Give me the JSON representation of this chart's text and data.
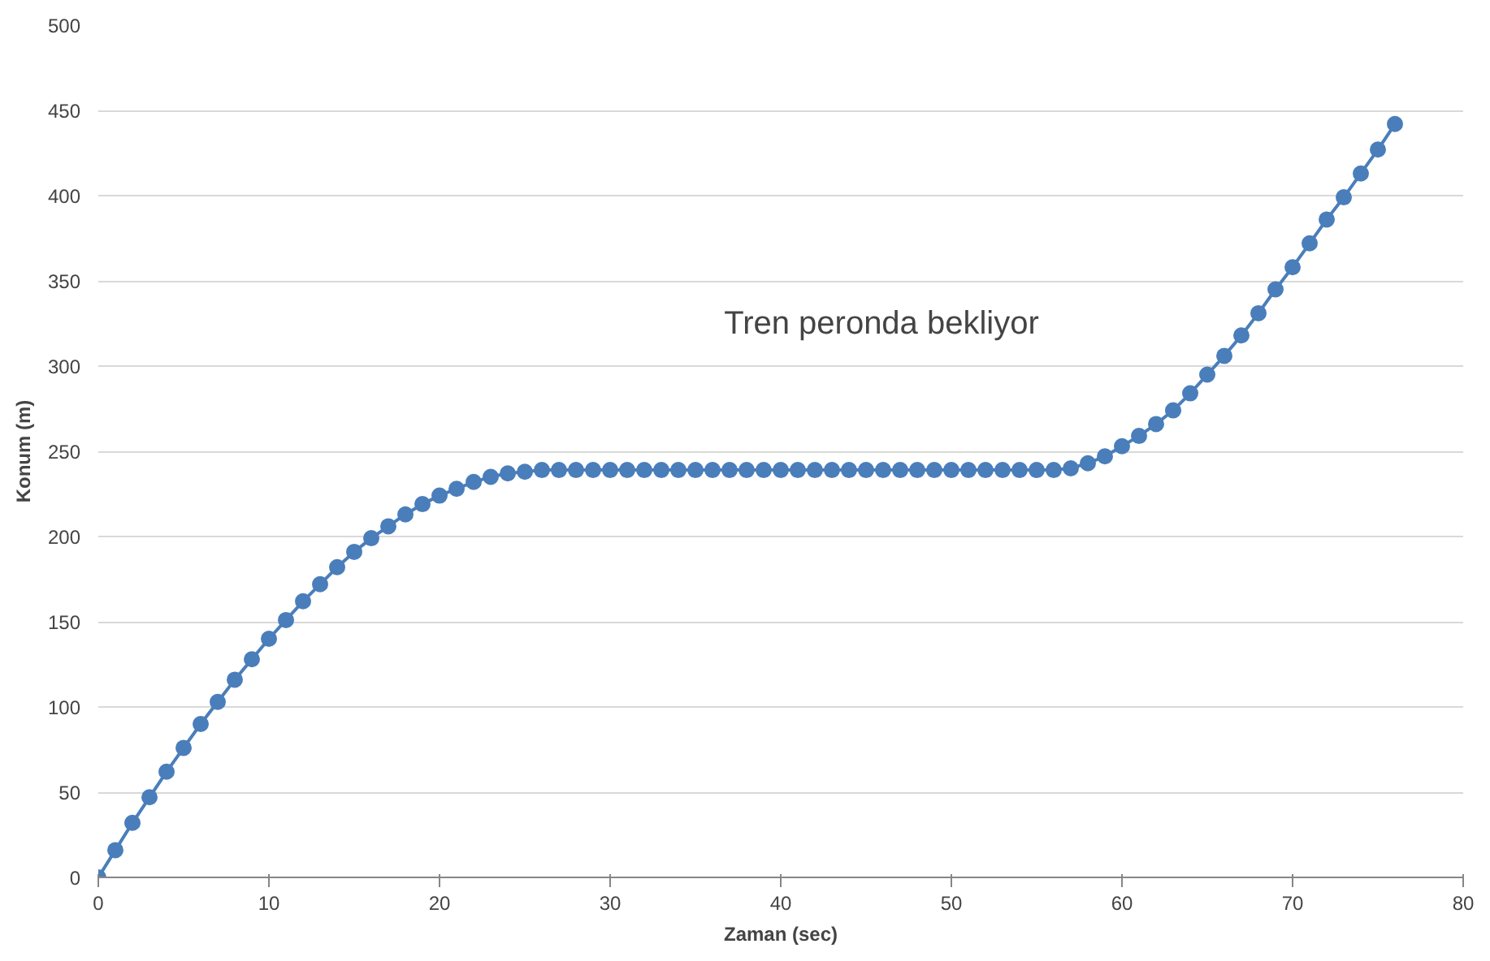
{
  "chart_data": {
    "type": "line",
    "xlabel": "Zaman (sec)",
    "ylabel": "Konum (m)",
    "x": [
      0,
      1,
      2,
      3,
      4,
      5,
      6,
      7,
      8,
      9,
      10,
      11,
      12,
      13,
      14,
      15,
      16,
      17,
      18,
      19,
      20,
      21,
      22,
      23,
      24,
      25,
      26,
      27,
      28,
      29,
      30,
      31,
      32,
      33,
      34,
      35,
      36,
      37,
      38,
      39,
      40,
      41,
      42,
      43,
      44,
      45,
      46,
      47,
      48,
      49,
      50,
      51,
      52,
      53,
      54,
      55,
      56,
      57,
      58,
      59,
      60,
      61,
      62,
      63,
      64,
      65,
      66,
      67,
      68,
      69,
      70,
      71,
      72,
      73,
      74,
      75,
      76
    ],
    "series": [
      {
        "color": "#4a7ebb",
        "values": [
          0,
          16,
          32,
          47,
          62,
          76,
          90,
          103,
          116,
          128,
          140,
          151,
          162,
          172,
          182,
          191,
          199,
          206,
          213,
          219,
          224,
          228,
          232,
          235,
          237,
          238,
          239,
          239,
          239,
          239,
          239,
          239,
          239,
          239,
          239,
          239,
          239,
          239,
          239,
          239,
          239,
          239,
          239,
          239,
          239,
          239,
          239,
          239,
          239,
          239,
          239,
          239,
          239,
          239,
          239,
          239,
          239,
          240,
          243,
          247,
          253,
          259,
          266,
          274,
          284,
          295,
          306,
          318,
          331,
          345,
          358,
          372,
          386,
          399,
          413,
          427,
          442
        ]
      }
    ],
    "xlim": [
      0,
      80
    ],
    "xticks": [
      0,
      10,
      20,
      30,
      40,
      50,
      60,
      70,
      80
    ],
    "ylim": [
      0,
      500
    ],
    "yticks": [
      0,
      50,
      100,
      150,
      200,
      250,
      300,
      350,
      400,
      450,
      500
    ],
    "grid": "y",
    "marker": "circle",
    "line_style": "solid",
    "annotations": [
      "Tren peronda bekliyor"
    ]
  }
}
